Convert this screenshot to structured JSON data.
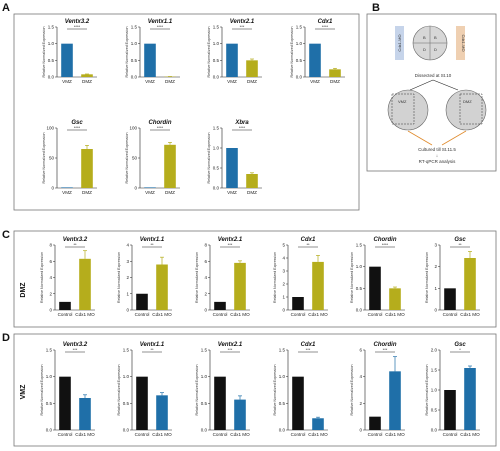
{
  "labels": {
    "A": "A",
    "B": "B",
    "C": "C",
    "D": "D"
  },
  "colors": {
    "blue": "#1f6fa8",
    "olive": "#b5ad1c",
    "black": "#111111"
  },
  "schematic": {
    "left_tag": "Cdx1-MO",
    "right_tag": "Cdx1-MO",
    "center_letters": [
      "B",
      "B",
      "D",
      "D"
    ],
    "dissected_text": "Dissected at St.10",
    "vmz_label": "VMZ",
    "dmz_label": "DMZ",
    "culture_text_1": "Cultured till St.11.5",
    "culture_arrow": "↓",
    "culture_text_2": "RT-qPCR analysis"
  },
  "rows": {
    "C": "DMZ",
    "D": "VMZ"
  },
  "chart_data": [
    {
      "panel": "A",
      "type": "bar",
      "title": "Ventx3.2",
      "ylabel": "Relative Normalized Expression",
      "categories": [
        "VMZ",
        "DMZ"
      ],
      "values": [
        1.0,
        0.08
      ],
      "errors": [
        0,
        0.01
      ],
      "ylim": [
        0,
        1.5
      ],
      "yticks": [
        "0.0",
        "0.5",
        "1.0",
        "1.5"
      ],
      "colors": [
        "#1f6fa8",
        "#b5ad1c"
      ],
      "sig": "****"
    },
    {
      "panel": "A",
      "type": "bar",
      "title": "Ventx1.1",
      "ylabel": "Relative Normalized Expression",
      "categories": [
        "VMZ",
        "DMZ"
      ],
      "values": [
        1.0,
        0.01
      ],
      "errors": [
        0,
        0.005
      ],
      "ylim": [
        0,
        1.5
      ],
      "yticks": [
        "0.0",
        "0.5",
        "1.0",
        "1.5"
      ],
      "colors": [
        "#1f6fa8",
        "#b5ad1c"
      ],
      "sig": "****"
    },
    {
      "panel": "A",
      "type": "bar",
      "title": "Ventx2.1",
      "ylabel": "Relative Normalized Expression",
      "categories": [
        "VMZ",
        "DMZ"
      ],
      "values": [
        1.0,
        0.5
      ],
      "errors": [
        0,
        0.04
      ],
      "ylim": [
        0,
        1.5
      ],
      "yticks": [
        "0.0",
        "0.5",
        "1.0",
        "1.5"
      ],
      "colors": [
        "#1f6fa8",
        "#b5ad1c"
      ],
      "sig": "***"
    },
    {
      "panel": "A",
      "type": "bar",
      "title": "Cdx1",
      "ylabel": "Relative Normalized Expression",
      "categories": [
        "VMZ",
        "DMZ"
      ],
      "values": [
        1.0,
        0.23
      ],
      "errors": [
        0,
        0.03
      ],
      "ylim": [
        0,
        1.5
      ],
      "yticks": [
        "0.0",
        "0.5",
        "1.0",
        "1.5"
      ],
      "colors": [
        "#1f6fa8",
        "#b5ad1c"
      ],
      "sig": "****"
    },
    {
      "panel": "A",
      "type": "bar",
      "title": "Gsc",
      "ylabel": "Relative Normalized Expression",
      "categories": [
        "VMZ",
        "DMZ"
      ],
      "values": [
        1.0,
        65.0
      ],
      "errors": [
        0,
        6.0
      ],
      "ylim": [
        0,
        100
      ],
      "yticks": [
        "0",
        "50",
        "100"
      ],
      "colors": [
        "#1f6fa8",
        "#b5ad1c"
      ],
      "sig": "****"
    },
    {
      "panel": "A",
      "type": "bar",
      "title": "Chordin",
      "ylabel": "Relative Normalized Expression",
      "categories": [
        "VMZ",
        "DMZ"
      ],
      "values": [
        1.0,
        72.0
      ],
      "errors": [
        0,
        4.0
      ],
      "ylim": [
        0,
        100
      ],
      "yticks": [
        "0",
        "50",
        "100"
      ],
      "colors": [
        "#1f6fa8",
        "#b5ad1c"
      ],
      "sig": "****"
    },
    {
      "panel": "A",
      "type": "bar",
      "title": "Xbra",
      "ylabel": "Relative Normalized Expression",
      "categories": [
        "VMZ",
        "DMZ"
      ],
      "values": [
        1.0,
        0.35
      ],
      "errors": [
        0,
        0.03
      ],
      "ylim": [
        0,
        1.5
      ],
      "yticks": [
        "0.0",
        "0.5",
        "1.0",
        "1.5"
      ],
      "colors": [
        "#1f6fa8",
        "#b5ad1c"
      ],
      "sig": "****"
    },
    {
      "panel": "C",
      "type": "bar",
      "title": "Ventx3.2",
      "ylabel": "Relative Normalized Expression",
      "categories": [
        "Control",
        "Cdx1 MO"
      ],
      "values": [
        1.0,
        6.3
      ],
      "errors": [
        0,
        1.0
      ],
      "ylim": [
        0,
        8
      ],
      "yticks": [
        "0",
        "2",
        "4",
        "6",
        "8"
      ],
      "colors": [
        "#111111",
        "#b5ad1c"
      ],
      "sig": "**"
    },
    {
      "panel": "C",
      "type": "bar",
      "title": "Ventx1.1",
      "ylabel": "Relative Normalized Expression",
      "categories": [
        "Control",
        "Cdx1 MO"
      ],
      "values": [
        1.0,
        2.8
      ],
      "errors": [
        0,
        0.45
      ],
      "ylim": [
        0,
        4
      ],
      "yticks": [
        "0",
        "1",
        "2",
        "3",
        "4"
      ],
      "colors": [
        "#111111",
        "#b5ad1c"
      ],
      "sig": "**"
    },
    {
      "panel": "C",
      "type": "bar",
      "title": "Ventx2.1",
      "ylabel": "Relative Normalized Expression",
      "categories": [
        "Control",
        "Cdx1 MO"
      ],
      "values": [
        1.0,
        5.8
      ],
      "errors": [
        0,
        0.25
      ],
      "ylim": [
        0,
        8
      ],
      "yticks": [
        "0",
        "2",
        "4",
        "6",
        "8"
      ],
      "colors": [
        "#111111",
        "#b5ad1c"
      ],
      "sig": "***"
    },
    {
      "panel": "C",
      "type": "bar",
      "title": "Cdx1",
      "ylabel": "Relative Normalized Expression",
      "categories": [
        "Control",
        "Cdx1 MO"
      ],
      "values": [
        1.0,
        3.7
      ],
      "errors": [
        0,
        0.5
      ],
      "ylim": [
        0,
        5
      ],
      "yticks": [
        "0",
        "1",
        "2",
        "3",
        "4",
        "5"
      ],
      "colors": [
        "#111111",
        "#b5ad1c"
      ],
      "sig": "**"
    },
    {
      "panel": "C",
      "type": "bar",
      "title": "Chordin",
      "ylabel": "Relative Normalized Expression",
      "categories": [
        "Control",
        "Cdx1 MO"
      ],
      "values": [
        1.0,
        0.5
      ],
      "errors": [
        0,
        0.03
      ],
      "ylim": [
        0,
        1.5
      ],
      "yticks": [
        "0.0",
        "0.5",
        "1.0",
        "1.5"
      ],
      "colors": [
        "#111111",
        "#b5ad1c"
      ],
      "sig": "****"
    },
    {
      "panel": "C",
      "type": "bar",
      "title": "Gsc",
      "ylabel": "Relative Normalized Expression",
      "categories": [
        "Control",
        "Cdx1 MO"
      ],
      "values": [
        1.0,
        2.4
      ],
      "errors": [
        0,
        0.3
      ],
      "ylim": [
        0,
        3
      ],
      "yticks": [
        "0",
        "1",
        "2",
        "3"
      ],
      "colors": [
        "#111111",
        "#b5ad1c"
      ],
      "sig": "**"
    },
    {
      "panel": "D",
      "type": "bar",
      "title": "Ventx3.2",
      "ylabel": "Relative Normalized Expression",
      "categories": [
        "Control",
        "Cdx1 MO"
      ],
      "values": [
        1.0,
        0.6
      ],
      "errors": [
        0,
        0.06
      ],
      "ylim": [
        0,
        1.5
      ],
      "yticks": [
        "0.0",
        "0.5",
        "1.0",
        "1.5"
      ],
      "colors": [
        "#111111",
        "#1f6fa8"
      ],
      "sig": "***"
    },
    {
      "panel": "D",
      "type": "bar",
      "title": "Ventx1.1",
      "ylabel": "Relative Normalized Expression",
      "categories": [
        "Control",
        "Cdx1 MO"
      ],
      "values": [
        1.0,
        0.65
      ],
      "errors": [
        0,
        0.05
      ],
      "ylim": [
        0,
        1.5
      ],
      "yticks": [
        "0.0",
        "0.5",
        "1.0",
        "1.5"
      ],
      "colors": [
        "#111111",
        "#1f6fa8"
      ],
      "sig": "**"
    },
    {
      "panel": "D",
      "type": "bar",
      "title": "Ventx2.1",
      "ylabel": "Relative Normalized Expression",
      "categories": [
        "Control",
        "Cdx1 MO"
      ],
      "values": [
        1.0,
        0.57
      ],
      "errors": [
        0,
        0.07
      ],
      "ylim": [
        0,
        1.5
      ],
      "yticks": [
        "0.0",
        "0.5",
        "1.0",
        "1.5"
      ],
      "colors": [
        "#111111",
        "#1f6fa8"
      ],
      "sig": "***"
    },
    {
      "panel": "D",
      "type": "bar",
      "title": "Cdx1",
      "ylabel": "Relative Normalized Expression",
      "categories": [
        "Control",
        "Cdx1 MO"
      ],
      "values": [
        1.0,
        0.22
      ],
      "errors": [
        0,
        0.02
      ],
      "ylim": [
        0,
        1.5
      ],
      "yticks": [
        "0.0",
        "0.5",
        "1.0",
        "1.5"
      ],
      "colors": [
        "#111111",
        "#1f6fa8"
      ],
      "sig": "***"
    },
    {
      "panel": "D",
      "type": "bar",
      "title": "Chordin",
      "ylabel": "Relative Normalized Expression",
      "categories": [
        "Control",
        "Cdx1 MO"
      ],
      "values": [
        1.0,
        4.4
      ],
      "errors": [
        0,
        1.1
      ],
      "ylim": [
        0,
        6
      ],
      "yticks": [
        "0",
        "2",
        "4",
        "6"
      ],
      "colors": [
        "#111111",
        "#1f6fa8"
      ],
      "sig": "***"
    },
    {
      "panel": "D",
      "type": "bar",
      "title": "Gsc",
      "ylabel": "Relative Normalized Expression",
      "categories": [
        "Control",
        "Cdx1 MO"
      ],
      "values": [
        1.0,
        1.55
      ],
      "errors": [
        0,
        0.05
      ],
      "ylim": [
        0,
        2
      ],
      "yticks": [
        "0.0",
        "0.5",
        "1.0",
        "1.5",
        "2.0"
      ],
      "colors": [
        "#111111",
        "#1f6fa8"
      ],
      "sig": "*"
    }
  ]
}
